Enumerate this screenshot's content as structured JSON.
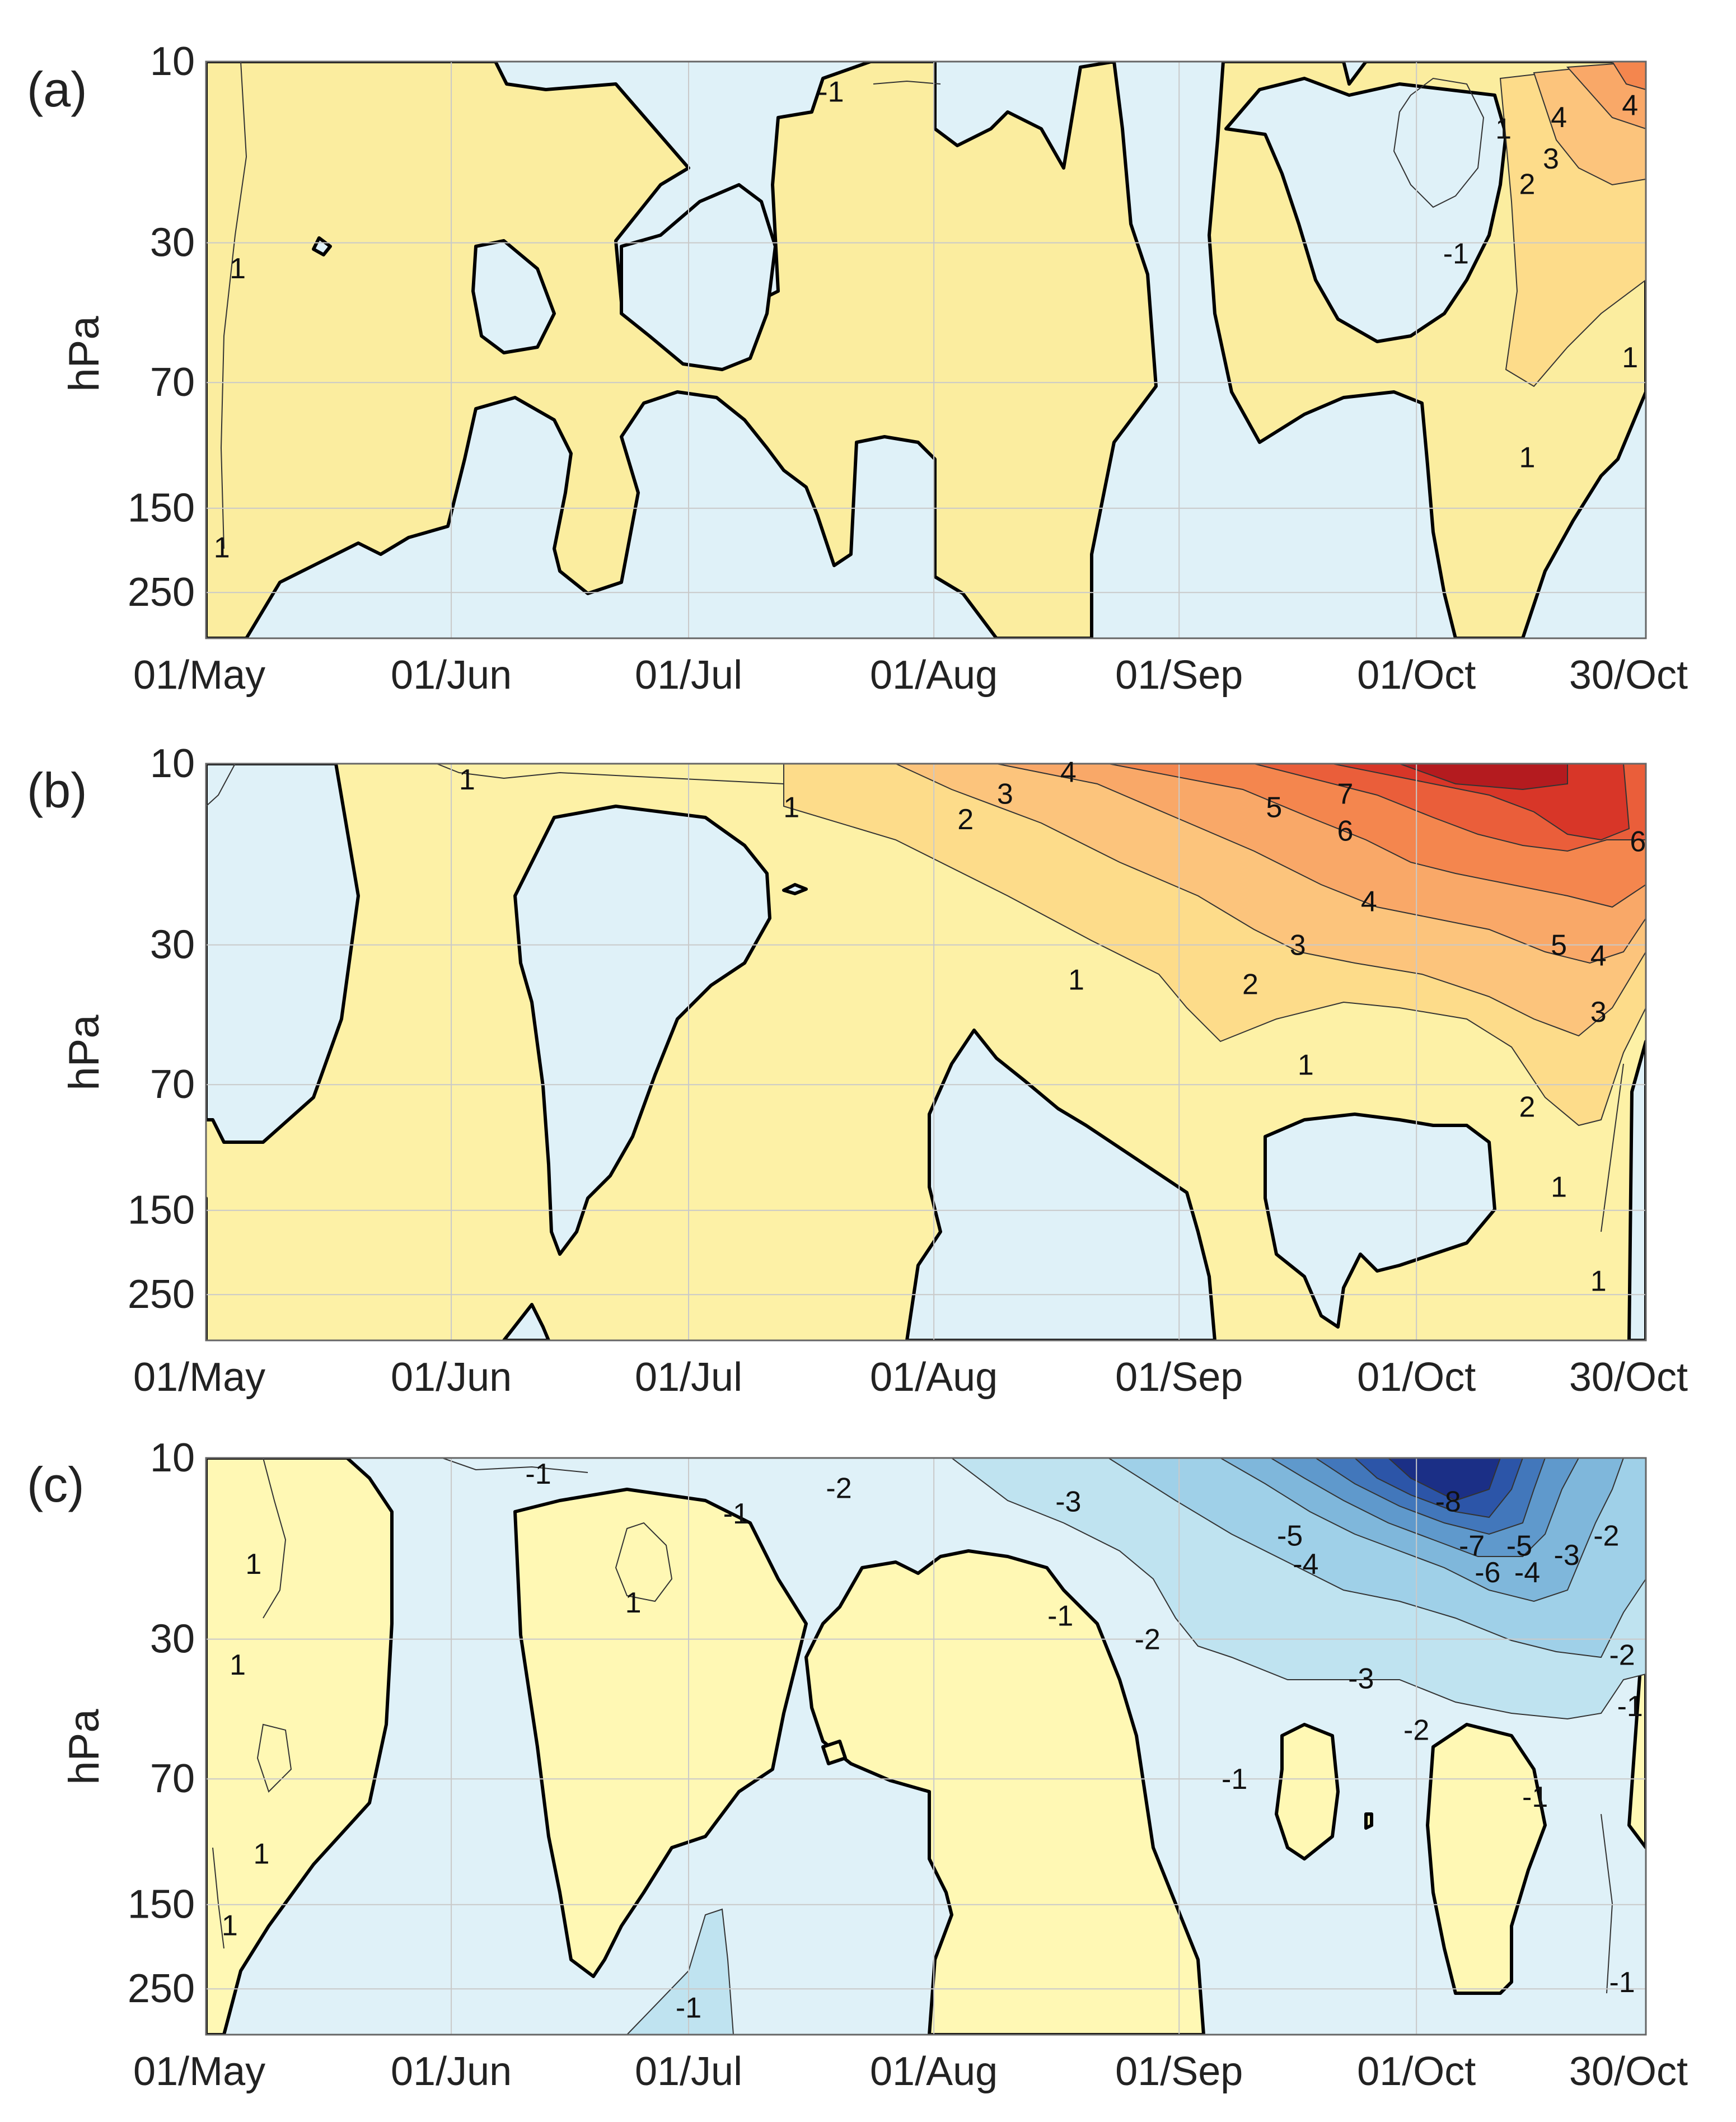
{
  "chart_data": [
    {
      "type": "contour",
      "panel_label": "(a)",
      "ylabel": "hPa",
      "xlabel": "",
      "x_ticks": [
        "01/May",
        "01/Jun",
        "01/Jul",
        "01/Aug",
        "01/Sep",
        "01/Oct",
        "30/Oct"
      ],
      "y_ticks": [
        "10",
        "30",
        "70",
        "150",
        "250"
      ],
      "y_scale": "log",
      "y_reversed": true,
      "grid": true,
      "max_label": "4",
      "contour_labels": [
        {
          "text": "-1",
          "x": "19 Jul",
          "p": 12
        },
        {
          "text": "-1",
          "x": "6 Oct",
          "p": 32
        },
        {
          "text": "1",
          "x": "5 May",
          "p": 35
        },
        {
          "text": "1",
          "x": "3 May",
          "p": 190
        },
        {
          "text": "1",
          "x": "12 Oct",
          "p": 15
        },
        {
          "text": "2",
          "x": "15 Oct",
          "p": 21
        },
        {
          "text": "3",
          "x": "18 Oct",
          "p": 18
        },
        {
          "text": "4",
          "x": "19 Oct",
          "p": 14
        },
        {
          "text": "4",
          "x": "28 Oct",
          "p": 13
        },
        {
          "text": "1",
          "x": "28 Oct",
          "p": 60
        },
        {
          "text": "1",
          "x": "15 Oct",
          "p": 110
        }
      ]
    },
    {
      "type": "contour",
      "panel_label": "(b)",
      "ylabel": "hPa",
      "xlabel": "",
      "x_ticks": [
        "01/May",
        "01/Jun",
        "01/Jul",
        "01/Aug",
        "01/Sep",
        "01/Oct",
        "30/Oct"
      ],
      "y_ticks": [
        "10",
        "30",
        "70",
        "150",
        "250"
      ],
      "y_scale": "log",
      "y_reversed": true,
      "grid": true,
      "max_label": "7",
      "contour_labels": [
        {
          "text": "1",
          "x": "3 Jun",
          "p": 11
        },
        {
          "text": "1",
          "x": "14 Jul",
          "p": 13
        },
        {
          "text": "2",
          "x": "5 Aug",
          "p": 14
        },
        {
          "text": "3",
          "x": "10 Aug",
          "p": 12
        },
        {
          "text": "4",
          "x": "18 Aug",
          "p": 10.5
        },
        {
          "text": "5",
          "x": "13 Sep",
          "p": 13
        },
        {
          "text": "6",
          "x": "22 Sep",
          "p": 15
        },
        {
          "text": "7",
          "x": "22 Sep",
          "p": 12
        },
        {
          "text": "4",
          "x": "25 Sep",
          "p": 23
        },
        {
          "text": "3",
          "x": "16 Sep",
          "p": 30
        },
        {
          "text": "2",
          "x": "10 Sep",
          "p": 38
        },
        {
          "text": "1",
          "x": "19 Aug",
          "p": 37
        },
        {
          "text": "1",
          "x": "17 Sep",
          "p": 62
        },
        {
          "text": "5",
          "x": "19 Oct",
          "p": 30
        },
        {
          "text": "4",
          "x": "24 Oct",
          "p": 32
        },
        {
          "text": "3",
          "x": "24 Oct",
          "p": 45
        },
        {
          "text": "2",
          "x": "15 Oct",
          "p": 80
        },
        {
          "text": "1",
          "x": "19 Oct",
          "p": 130
        },
        {
          "text": "1",
          "x": "24 Oct",
          "p": 230
        },
        {
          "text": "6",
          "x": "29 Oct",
          "p": 16
        }
      ]
    },
    {
      "type": "contour",
      "panel_label": "(c)",
      "ylabel": "hPa",
      "xlabel": "",
      "x_ticks": [
        "01/May",
        "01/Jun",
        "01/Jul",
        "01/Aug",
        "01/Sep",
        "01/Oct",
        "30/Oct"
      ],
      "y_ticks": [
        "10",
        "30",
        "70",
        "150",
        "250"
      ],
      "y_scale": "log",
      "y_reversed": true,
      "grid": true,
      "min_label": "-8",
      "contour_labels": [
        {
          "text": "-1",
          "x": "12 Jun",
          "p": 11
        },
        {
          "text": "-1",
          "x": "7 Jul",
          "p": 14
        },
        {
          "text": "-2",
          "x": "20 Jul",
          "p": 12
        },
        {
          "text": "-3",
          "x": "18 Aug",
          "p": 13
        },
        {
          "text": "-1",
          "x": "17 Aug",
          "p": 26
        },
        {
          "text": "-2",
          "x": "28 Aug",
          "p": 30
        },
        {
          "text": "-5",
          "x": "15 Sep",
          "p": 16
        },
        {
          "text": "-4",
          "x": "17 Sep",
          "p": 19
        },
        {
          "text": "-8",
          "x": "5 Oct",
          "p": 13
        },
        {
          "text": "-7",
          "x": "8 Oct",
          "p": 17
        },
        {
          "text": "-6",
          "x": "10 Oct",
          "p": 20
        },
        {
          "text": "-5",
          "x": "14 Oct",
          "p": 17
        },
        {
          "text": "-4",
          "x": "15 Oct",
          "p": 20
        },
        {
          "text": "-3",
          "x": "20 Oct",
          "p": 18
        },
        {
          "text": "-2",
          "x": "25 Oct",
          "p": 16
        },
        {
          "text": "-3",
          "x": "24 Sep",
          "p": 38
        },
        {
          "text": "-2",
          "x": "1 Oct",
          "p": 52
        },
        {
          "text": "-1",
          "x": "8 Sep",
          "p": 70
        },
        {
          "text": "-1",
          "x": "16 Oct",
          "p": 78
        },
        {
          "text": "-2",
          "x": "27 Oct",
          "p": 33
        },
        {
          "text": "-1",
          "x": "28 Oct",
          "p": 45
        },
        {
          "text": "-1",
          "x": "27 Oct",
          "p": 240
        },
        {
          "text": "-1",
          "x": "1 Jul",
          "p": 280
        },
        {
          "text": "1",
          "x": "7 May",
          "p": 19
        },
        {
          "text": "1",
          "x": "5 May",
          "p": 35
        },
        {
          "text": "1",
          "x": "8 May",
          "p": 110
        },
        {
          "text": "1",
          "x": "4 May",
          "p": 170
        },
        {
          "text": "1",
          "x": "24 Jun",
          "p": 24
        }
      ]
    }
  ],
  "colors": {
    "positive_weak": "#fdf1a6",
    "negative_weak": "#dff1f8",
    "panel_a_positive": "#fbed9f",
    "panel_c_positive": "#fff8b4",
    "warm_levels": [
      "#fdf1a6",
      "#fddc8a",
      "#fcc47c",
      "#f9a868",
      "#f4864e",
      "#ea5e3a",
      "#d83628",
      "#b41b1f"
    ],
    "cool_levels": [
      "#dff1f8",
      "#bfe3f0",
      "#9fd0e8",
      "#7fb7db",
      "#5f99cc",
      "#4277bb",
      "#2c55a8",
      "#1b2f86"
    ],
    "zero_line": "#000000",
    "contour_line": "#222222",
    "grid": "#c9c9c9"
  }
}
